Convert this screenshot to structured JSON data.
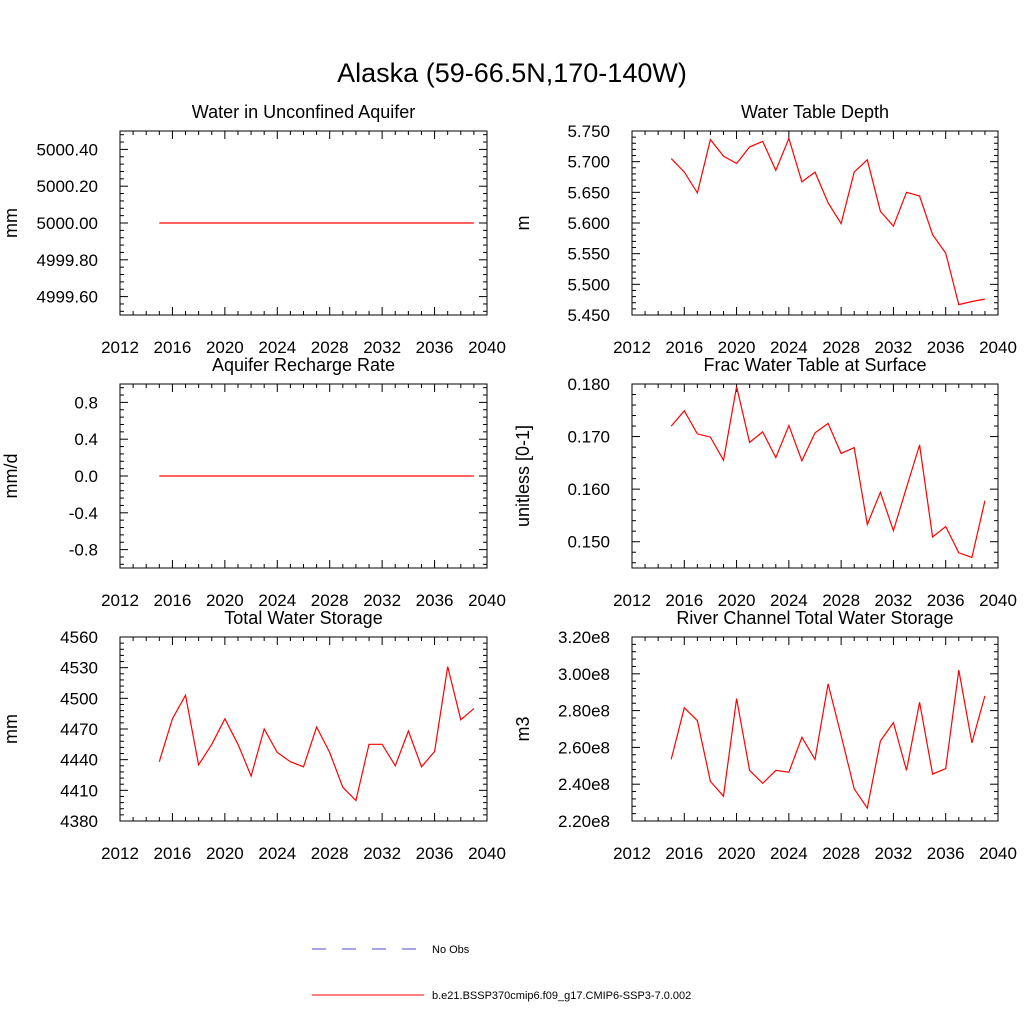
{
  "title": "Alaska (59-66.5N,170-140W)",
  "legend": {
    "placement": "bottom-center",
    "entries": [
      {
        "label": "No Obs",
        "color": "#4d4dcc",
        "style": "dashed"
      },
      {
        "label": "b.e21.BSSP370cmip6.f09_g17.CMIP6-SSP3-7.0.002",
        "color": "#ff0000",
        "style": "solid"
      }
    ]
  },
  "chart_data": [
    {
      "type": "line",
      "title": "Water in Unconfined Aquifer",
      "ylabel": "mm",
      "xlim": [
        2012,
        2040
      ],
      "xticks": [
        2012,
        2016,
        2020,
        2024,
        2028,
        2032,
        2036,
        2040
      ],
      "ylim": [
        4999.5,
        5000.5
      ],
      "yticks": [
        4999.6,
        4999.8,
        5000.0,
        5000.2,
        5000.4
      ],
      "ytick_labels": [
        "4999.60",
        "4999.80",
        "5000.00",
        "5000.20",
        "5000.40"
      ],
      "series": [
        {
          "color": "#ff0000",
          "x": [
            2015,
            2016,
            2017,
            2018,
            2019,
            2020,
            2021,
            2022,
            2023,
            2024,
            2025,
            2026,
            2027,
            2028,
            2029,
            2030,
            2031,
            2032,
            2033,
            2034,
            2035,
            2036,
            2037,
            2038,
            2039
          ],
          "values": [
            5000,
            5000,
            5000,
            5000,
            5000,
            5000,
            5000,
            5000,
            5000,
            5000,
            5000,
            5000,
            5000,
            5000,
            5000,
            5000,
            5000,
            5000,
            5000,
            5000,
            5000,
            5000,
            5000,
            5000,
            5000
          ]
        }
      ]
    },
    {
      "type": "line",
      "title": "Water Table Depth",
      "ylabel": "m",
      "xlim": [
        2012,
        2040
      ],
      "xticks": [
        2012,
        2016,
        2020,
        2024,
        2028,
        2032,
        2036,
        2040
      ],
      "ylim": [
        5.45,
        5.75
      ],
      "yticks": [
        5.45,
        5.5,
        5.55,
        5.6,
        5.65,
        5.7,
        5.75
      ],
      "ytick_labels": [
        "5.450",
        "5.500",
        "5.550",
        "5.600",
        "5.650",
        "5.700",
        "5.750"
      ],
      "series": [
        {
          "color": "#ff0000",
          "x": [
            2015,
            2016,
            2017,
            2018,
            2019,
            2020,
            2021,
            2022,
            2023,
            2024,
            2025,
            2026,
            2027,
            2028,
            2029,
            2030,
            2031,
            2032,
            2033,
            2034,
            2035,
            2036,
            2037,
            2038,
            2039
          ],
          "values": [
            5.705,
            5.683,
            5.649,
            5.736,
            5.709,
            5.697,
            5.724,
            5.733,
            5.686,
            5.738,
            5.667,
            5.683,
            5.633,
            5.599,
            5.683,
            5.703,
            5.619,
            5.595,
            5.65,
            5.644,
            5.581,
            5.551,
            5.467,
            5.472,
            5.476
          ]
        }
      ]
    },
    {
      "type": "line",
      "title": "Aquifer Recharge Rate",
      "ylabel": "mm/d",
      "xlim": [
        2012,
        2040
      ],
      "xticks": [
        2012,
        2016,
        2020,
        2024,
        2028,
        2032,
        2036,
        2040
      ],
      "ylim": [
        -1.0,
        1.0
      ],
      "yticks": [
        -0.8,
        -0.4,
        0.0,
        0.4,
        0.8
      ],
      "ytick_labels": [
        "-0.8",
        "-0.4",
        "0.0",
        "0.4",
        "0.8"
      ],
      "series": [
        {
          "color": "#ff0000",
          "x": [
            2015,
            2016,
            2017,
            2018,
            2019,
            2020,
            2021,
            2022,
            2023,
            2024,
            2025,
            2026,
            2027,
            2028,
            2029,
            2030,
            2031,
            2032,
            2033,
            2034,
            2035,
            2036,
            2037,
            2038,
            2039
          ],
          "values": [
            0,
            0,
            0,
            0,
            0,
            0,
            0,
            0,
            0,
            0,
            0,
            0,
            0,
            0,
            0,
            0,
            0,
            0,
            0,
            0,
            0,
            0,
            0,
            0,
            0
          ]
        }
      ]
    },
    {
      "type": "line",
      "title": "Frac Water Table at Surface",
      "ylabel": "unitless [0-1]",
      "xlim": [
        2012,
        2040
      ],
      "xticks": [
        2012,
        2016,
        2020,
        2024,
        2028,
        2032,
        2036,
        2040
      ],
      "ylim": [
        0.145,
        0.18
      ],
      "yticks": [
        0.15,
        0.16,
        0.17,
        0.18
      ],
      "ytick_labels": [
        "0.150",
        "0.160",
        "0.170",
        "0.180"
      ],
      "series": [
        {
          "color": "#ff0000",
          "x": [
            2015,
            2016,
            2017,
            2018,
            2019,
            2020,
            2021,
            2022,
            2023,
            2024,
            2025,
            2026,
            2027,
            2028,
            2029,
            2030,
            2031,
            2032,
            2033,
            2034,
            2035,
            2036,
            2037,
            2038,
            2039
          ],
          "values": [
            0.172,
            0.1749,
            0.1705,
            0.1699,
            0.1655,
            0.1795,
            0.1689,
            0.1709,
            0.166,
            0.1721,
            0.1654,
            0.1707,
            0.1725,
            0.1668,
            0.1679,
            0.1533,
            0.1594,
            0.1521,
            0.1603,
            0.1684,
            0.1509,
            0.1529,
            0.1479,
            0.147,
            0.1578
          ]
        }
      ]
    },
    {
      "type": "line",
      "title": "Total Water Storage",
      "ylabel": "mm",
      "xlim": [
        2012,
        2040
      ],
      "xticks": [
        2012,
        2016,
        2020,
        2024,
        2028,
        2032,
        2036,
        2040
      ],
      "ylim": [
        4380,
        4560
      ],
      "yticks": [
        4380,
        4410,
        4440,
        4470,
        4500,
        4530,
        4560
      ],
      "ytick_labels": [
        "4380",
        "4410",
        "4440",
        "4470",
        "4500",
        "4530",
        "4560"
      ],
      "series": [
        {
          "color": "#ff0000",
          "x": [
            2015,
            2016,
            2017,
            2018,
            2019,
            2020,
            2021,
            2022,
            2023,
            2024,
            2025,
            2026,
            2027,
            2028,
            2029,
            2030,
            2031,
            2032,
            2033,
            2034,
            2035,
            2036,
            2037,
            2038,
            2039
          ],
          "values": [
            4438,
            4480,
            4503,
            4435,
            4455,
            4480,
            4455,
            4424,
            4470,
            4447,
            4438,
            4433,
            4472,
            4447,
            4413,
            4400,
            4455,
            4455,
            4434,
            4468,
            4433,
            4448,
            4531,
            4479,
            4490
          ]
        }
      ]
    },
    {
      "type": "line",
      "title": "River Channel Total Water Storage",
      "ylabel": "m3",
      "xlim": [
        2012,
        2040
      ],
      "xticks": [
        2012,
        2016,
        2020,
        2024,
        2028,
        2032,
        2036,
        2040
      ],
      "ylim": [
        220000000.0,
        320000000.0
      ],
      "yticks": [
        220000000.0,
        240000000.0,
        260000000.0,
        280000000.0,
        300000000.0,
        320000000.0
      ],
      "ytick_labels": [
        "2.20e8",
        "2.40e8",
        "2.60e8",
        "2.80e8",
        "3.00e8",
        "3.20e8"
      ],
      "series": [
        {
          "color": "#ff0000",
          "x": [
            2015,
            2016,
            2017,
            2018,
            2019,
            2020,
            2021,
            2022,
            2023,
            2024,
            2025,
            2026,
            2027,
            2028,
            2029,
            2030,
            2031,
            2032,
            2033,
            2034,
            2035,
            2036,
            2037,
            2038,
            2039
          ],
          "values": [
            253500000.0,
            281500000.0,
            274500000.0,
            241500000.0,
            233500000.0,
            286500000.0,
            247500000.0,
            240500000.0,
            247500000.0,
            246500000.0,
            265500000.0,
            253500000.0,
            294500000.0,
            266500000.0,
            237500000.0,
            227000000.0,
            263500000.0,
            273500000.0,
            247500000.0,
            284500000.0,
            245500000.0,
            248500000.0,
            302000000.0,
            262500000.0,
            288000000.0
          ]
        }
      ]
    }
  ]
}
